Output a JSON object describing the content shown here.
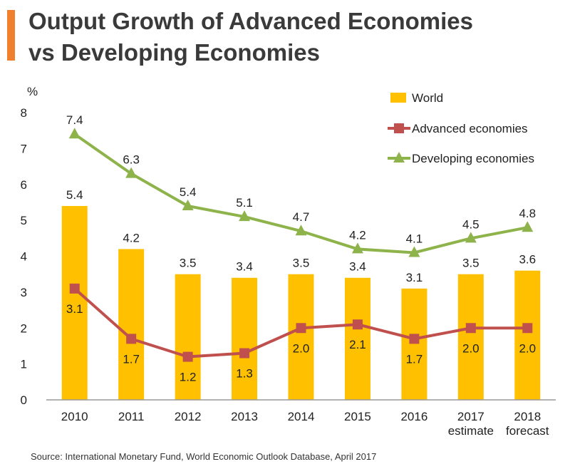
{
  "header": {
    "title_line1": "Output Growth of Advanced Economies",
    "title_line2": "vs Developing Economies",
    "accent_color": "#F07F2E"
  },
  "footer": {
    "source": "Source: International Monetary Fund, World Economic Outlook Database, April 2017"
  },
  "chart_data": {
    "type": "bar",
    "title": "Output Growth of Advanced Economies vs Developing Economies",
    "ylabel": "%",
    "xlabel": "",
    "ylim": [
      0,
      8
    ],
    "yticks": [
      "0",
      "1",
      "2",
      "3",
      "4",
      "5",
      "6",
      "7",
      "8"
    ],
    "categories": [
      [
        "2010"
      ],
      [
        "2011"
      ],
      [
        "2012"
      ],
      [
        "2013"
      ],
      [
        "2014"
      ],
      [
        "2015"
      ],
      [
        "2016"
      ],
      [
        "2017",
        "estimate"
      ],
      [
        "2018",
        "forecast"
      ]
    ],
    "series": [
      {
        "name": "World",
        "kind": "bar",
        "color": "#FFC000",
        "values": [
          5.4,
          4.2,
          3.5,
          3.4,
          3.5,
          3.4,
          3.1,
          3.5,
          3.6
        ],
        "labels": [
          "5.4",
          "4.2",
          "3.5",
          "3.4",
          "3.5",
          "3.4",
          "3.1",
          "3.5",
          "3.6"
        ]
      },
      {
        "name": "Advanced economies",
        "kind": "line",
        "marker": "square",
        "color": "#C0504D",
        "values": [
          3.1,
          1.7,
          1.2,
          1.3,
          2.0,
          2.1,
          1.7,
          2.0,
          2.0
        ],
        "labels": [
          "3.1",
          "1.7",
          "1.2",
          "1.3",
          "2.0",
          "2.1",
          "1.7",
          "2.0",
          "2.0"
        ]
      },
      {
        "name": "Developing economies",
        "kind": "line",
        "marker": "triangle",
        "color": "#8DB34A",
        "values": [
          7.4,
          6.3,
          5.4,
          5.1,
          4.7,
          4.2,
          4.1,
          4.5,
          4.8
        ],
        "labels": [
          "7.4",
          "6.3",
          "5.4",
          "5.1",
          "4.7",
          "4.2",
          "4.1",
          "4.5",
          "4.8"
        ]
      }
    ],
    "legend": [
      "World",
      "Advanced economies",
      "Developing economies"
    ],
    "legend_position": "top-right",
    "grid": false
  }
}
